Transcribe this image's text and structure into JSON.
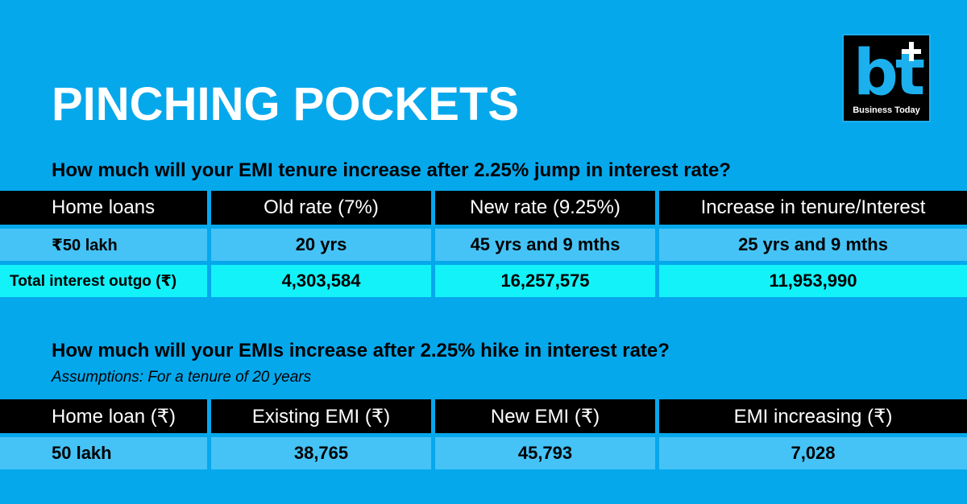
{
  "title": "PINCHING POCKETS",
  "logo": {
    "mark": "bt",
    "brand": "Business Today"
  },
  "section1": {
    "question": "How much will your EMI tenure increase after 2.25% jump in interest rate?",
    "headers": [
      "Home loans",
      "Old rate (7%)",
      "New rate  (9.25%)",
      "Increase in tenure/Interest"
    ],
    "rows": [
      [
        "₹50 lakh",
        "20 yrs",
        "45 yrs and 9 mths",
        "25 yrs and 9 mths"
      ],
      [
        "Total interest outgo (₹)",
        "4,303,584",
        "16,257,575",
        "11,953,990"
      ]
    ]
  },
  "section2": {
    "question": "How much will your EMIs increase after 2.25% hike in interest rate?",
    "assumption": "Assumptions: For a tenure of 20 years",
    "headers": [
      "Home loan (₹)",
      "Existing EMI (₹)",
      "New EMI (₹)",
      "EMI increasing (₹)"
    ],
    "rows": [
      [
        "50 lakh",
        "38,765",
        "45,793",
        "7,028"
      ]
    ]
  },
  "colors": {
    "background": "#06a8ec",
    "header_row": "#000000",
    "row": "#45c3f6",
    "row_highlight": "#13f2f9"
  }
}
